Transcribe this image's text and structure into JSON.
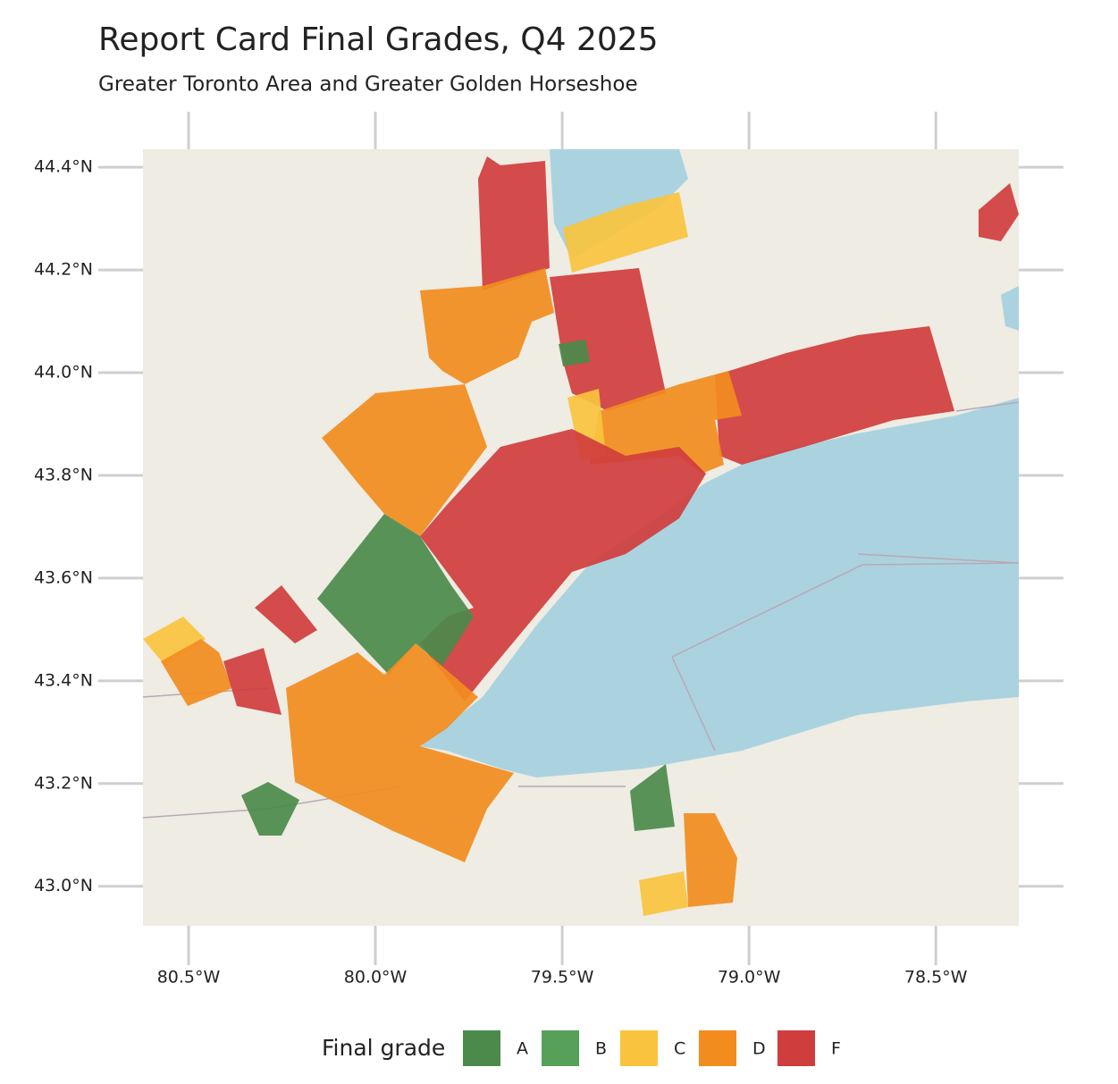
{
  "chart_data": {
    "type": "map",
    "title": "Report Card Final Grades, Q4 2025",
    "subtitle": "Greater Toronto Area and Greater Golden Horseshoe",
    "xlim": [
      -80.622,
      -78.278
    ],
    "ylim": [
      42.923,
      44.435
    ],
    "xticks": [
      {
        "value": -80.5,
        "label": "80.5°W"
      },
      {
        "value": -80.0,
        "label": "80.0°W"
      },
      {
        "value": -79.5,
        "label": "79.5°W"
      },
      {
        "value": -79.0,
        "label": "79.0°W"
      },
      {
        "value": -78.5,
        "label": "78.5°W"
      }
    ],
    "yticks": [
      {
        "value": 43.0,
        "label": "43.0°N"
      },
      {
        "value": 43.2,
        "label": "43.2°N"
      },
      {
        "value": 43.4,
        "label": "43.4°N"
      },
      {
        "value": 43.6,
        "label": "43.6°N"
      },
      {
        "value": 43.8,
        "label": "43.8°N"
      },
      {
        "value": 44.0,
        "label": "44.0°N"
      },
      {
        "value": 44.2,
        "label": "44.2°N"
      },
      {
        "value": 44.4,
        "label": "44.4°N"
      }
    ],
    "legend": {
      "title": "Final grade",
      "items": [
        {
          "name": "A",
          "color": "#4b8a4b"
        },
        {
          "name": "B",
          "color": "#57a05a"
        },
        {
          "name": "C",
          "color": "#f9c33e"
        },
        {
          "name": "D",
          "color": "#f28c1e"
        },
        {
          "name": "F",
          "color": "#d03d3d"
        }
      ]
    }
  }
}
